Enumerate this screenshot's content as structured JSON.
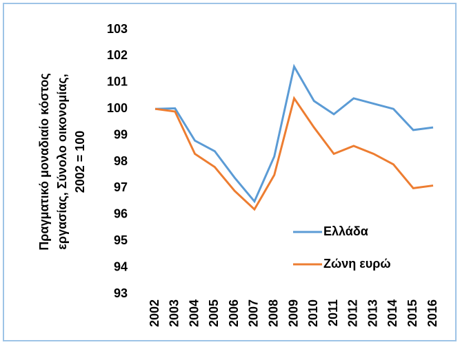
{
  "chart_data": {
    "type": "line",
    "y_label": [
      "Πραγματικό μοναδιαίο κόστος",
      "εργασίας, Σύνολο οικονομίας,",
      "2002 = 100"
    ],
    "x": [
      "2002",
      "2003",
      "2004",
      "2005",
      "2006",
      "2007",
      "2008",
      "2009",
      "2010",
      "2011",
      "2012",
      "2013",
      "2014",
      "2015",
      "2016"
    ],
    "series": [
      {
        "name": "Ελλάδα",
        "color": "#5b9bd5",
        "values": [
          100,
          100.02,
          98.8,
          98.4,
          97.4,
          96.5,
          98.2,
          101.6,
          100.3,
          99.8,
          100.4,
          100.2,
          100.0,
          99.2,
          99.3
        ]
      },
      {
        "name": "Ζώνη ευρώ",
        "color": "#ed7d31",
        "values": [
          100,
          99.9,
          98.3,
          97.8,
          96.9,
          96.2,
          97.5,
          100.4,
          99.3,
          98.3,
          98.6,
          98.3,
          97.9,
          97.0,
          97.1
        ]
      }
    ],
    "ylim": [
      93,
      103
    ],
    "yticks": [
      93,
      94,
      95,
      96,
      97,
      98,
      99,
      100,
      101,
      102,
      103
    ],
    "grid": false
  }
}
